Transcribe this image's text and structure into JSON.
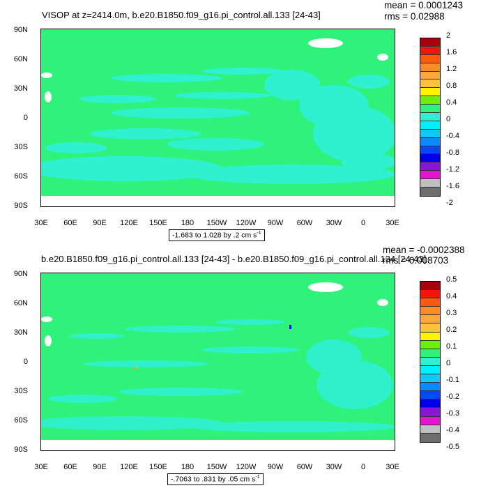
{
  "panels": [
    {
      "title": "VISOP at z=2414.0m, b.e20.B1850.f09_g16.pi_control.all.133 [24-43]",
      "mean_text": "mean = 0.0001243",
      "rms_text": "rms = 0.02988",
      "range_text": "-1.683 to 1.028 by .2 cm s",
      "range_exp": "-1",
      "colorbar_labels": [
        "2",
        "1.6",
        "1.2",
        "0.8",
        "0.4",
        "0",
        "-0.4",
        "-0.8",
        "-1.2",
        "-1.6",
        "-2"
      ]
    },
    {
      "title": "b.e20.B1850.f09_g16.pi_control.all.133 [24-43] - b.e20.B1850.f09_g16.pi_control.all.134 [24-43]",
      "mean_text": "mean = -0.0002388",
      "rms_text": "rms = 0.008703",
      "range_text": "-.7063 to .831 by .05 cm s",
      "range_exp": "-1",
      "colorbar_labels": [
        "0.5",
        "0.4",
        "0.3",
        "0.2",
        "0.1",
        "0",
        "-0.1",
        "-0.2",
        "-0.3",
        "-0.4",
        "-0.5"
      ]
    }
  ],
  "lat_labels": [
    "90N",
    "60N",
    "30N",
    "0",
    "30S",
    "60S",
    "90S"
  ],
  "lon_labels": [
    "30E",
    "60E",
    "90E",
    "120E",
    "150E",
    "180",
    "150W",
    "120W",
    "90W",
    "60W",
    "30W",
    "0",
    "30E"
  ],
  "colors": {
    "field_main": "#2ef27a",
    "field_alt": "#30f0d4",
    "colorbar": [
      "#a8000c",
      "#f4140c",
      "#fe5a0a",
      "#fe8c24",
      "#fea83a",
      "#fec23e",
      "#fef400",
      "#6cef0a",
      "#2ef27a",
      "#30f0d4",
      "#00f0fe",
      "#10c8fe",
      "#0a8afe",
      "#0646fe",
      "#0000e6",
      "#8c14d2",
      "#e614d2",
      "#bfbfbf",
      "#6e6e6e"
    ]
  }
}
